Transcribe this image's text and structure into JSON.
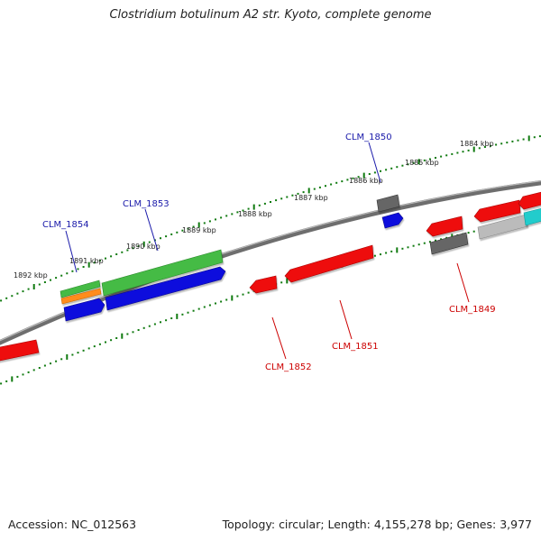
{
  "title": "Clostridium botulinum A2 str. Kyoto, complete genome",
  "footer": {
    "accession_label": "Accession:",
    "accession": "NC_012563",
    "topology_label": "Topology:",
    "topology": "circular",
    "length_label": "Length:",
    "length": "4,155,278 bp",
    "genes_label": "Genes:",
    "genes": "3,977"
  },
  "colors": {
    "backbone": "#7a7a7a",
    "tick": "#0f7a0f",
    "forward_label": "#1a1aaa",
    "reverse_label": "#cc0000",
    "cds_red": "#ee1111",
    "blue": "#1111dd",
    "green": "#44bb44",
    "orange": "#ff8c1a",
    "gray": "#666666",
    "light_gray": "#bbbbbb",
    "cyan": "#22cccc"
  },
  "ruler_labels": [
    "1892 kbp",
    "1891 kbp",
    "1890 kbp",
    "1889 kbp",
    "1888 kbp",
    "1887 kbp",
    "1886 kbp",
    "1885 kbp",
    "1884 kbp"
  ],
  "gene_labels": {
    "forward": [
      "CLM_1854",
      "CLM_1853",
      "CLM_1850"
    ],
    "reverse": [
      "CLM_1852",
      "CLM_1851",
      "CLM_1849"
    ]
  }
}
